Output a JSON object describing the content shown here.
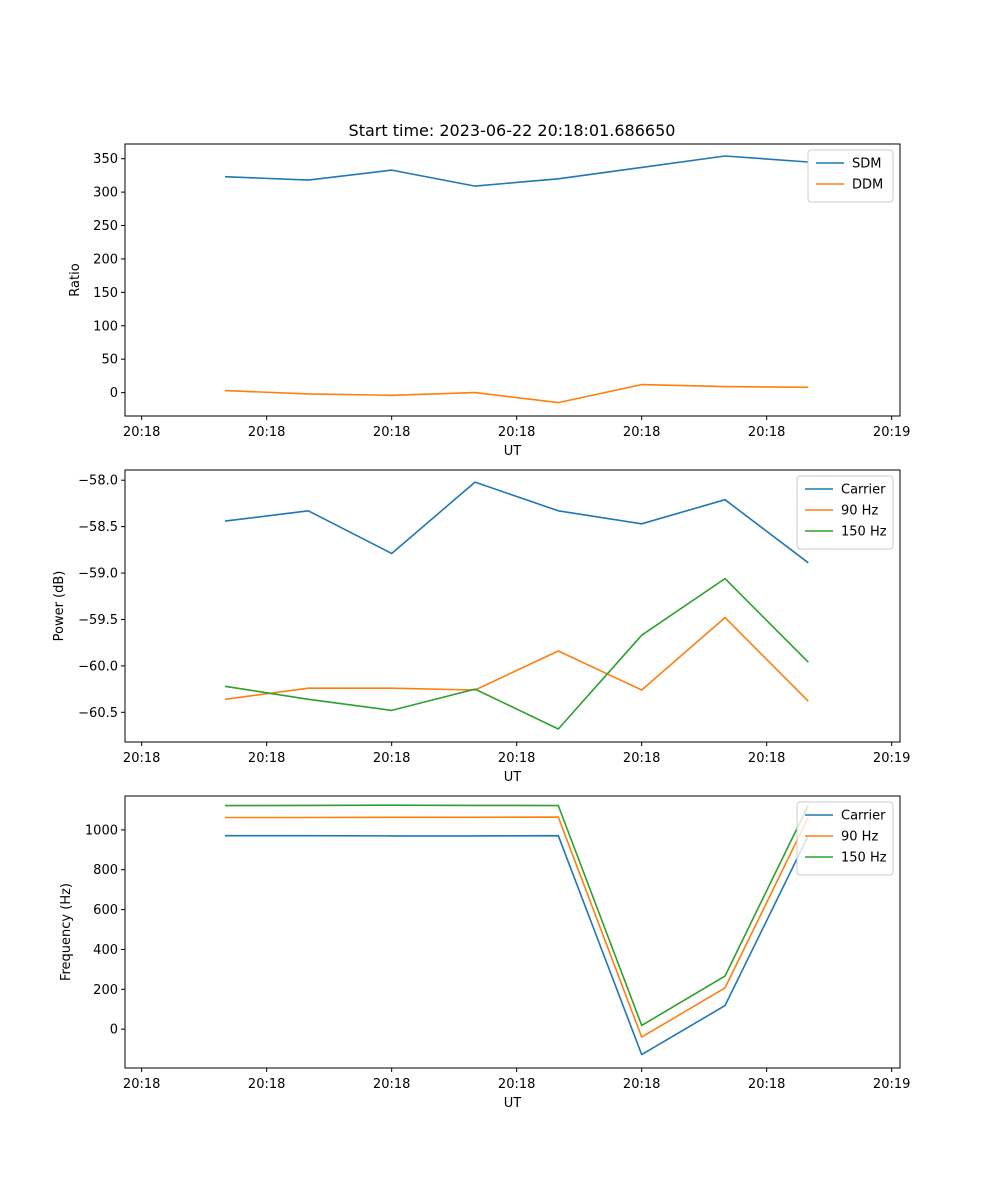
{
  "title": "Start time: 2023-06-22 20:18:01.686650",
  "colors": {
    "series1": "#1f77b4",
    "series2": "#ff7f0e",
    "series3": "#2ca02c",
    "axes": "#000000",
    "legend_border": "#cccccc"
  },
  "chart_data": [
    {
      "type": "line",
      "title": "Start time: 2023-06-22 20:18:01.686650",
      "xlabel": "UT",
      "ylabel": "Ratio",
      "x_ticks": [
        "20:18",
        "20:18",
        "20:18",
        "20:18",
        "20:18",
        "20:18",
        "20:18"
      ],
      "x_tick_last": "20:19",
      "x": [
        1,
        2,
        3,
        4,
        5,
        6,
        7,
        8
      ],
      "xlim": [
        -0.2,
        9.1
      ],
      "y_ticks": [
        0,
        50,
        100,
        150,
        200,
        250,
        300,
        350
      ],
      "ylim": [
        -35,
        372
      ],
      "legend": "top-right",
      "grid": false,
      "series": [
        {
          "name": "SDM",
          "color": "#1f77b4",
          "values": [
            323,
            318,
            333,
            309,
            320,
            337,
            354,
            345
          ]
        },
        {
          "name": "DDM",
          "color": "#ff7f0e",
          "values": [
            3,
            -2,
            -4,
            0,
            -15,
            12,
            9,
            8
          ]
        }
      ]
    },
    {
      "type": "line",
      "title": "",
      "xlabel": "UT",
      "ylabel": "Power (dB)",
      "x_ticks": [
        "20:18",
        "20:18",
        "20:18",
        "20:18",
        "20:18",
        "20:18",
        "20:18"
      ],
      "x_tick_last": "20:19",
      "x": [
        1,
        2,
        3,
        4,
        5,
        6,
        7,
        8
      ],
      "xlim": [
        -0.2,
        9.1
      ],
      "y_ticks": [
        -58.0,
        -58.5,
        -59.0,
        -59.5,
        -60.0,
        -60.5
      ],
      "y_tick_labels": [
        "−58.0",
        "−58.5",
        "−59.0",
        "−59.5",
        "−60.0",
        "−60.5"
      ],
      "ylim": [
        -60.82,
        -57.89
      ],
      "legend": "top-right",
      "grid": false,
      "series": [
        {
          "name": "Carrier",
          "color": "#1f77b4",
          "values": [
            -58.44,
            -58.33,
            -58.79,
            -58.02,
            -58.33,
            -58.47,
            -58.21,
            -58.89
          ]
        },
        {
          "name": "90 Hz",
          "color": "#ff7f0e",
          "values": [
            -60.36,
            -60.24,
            -60.24,
            -60.26,
            -59.84,
            -60.26,
            -59.48,
            -60.38
          ]
        },
        {
          "name": "150 Hz",
          "color": "#2ca02c",
          "values": [
            -60.22,
            -60.36,
            -60.48,
            -60.25,
            -60.68,
            -59.67,
            -59.06,
            -59.96
          ]
        }
      ]
    },
    {
      "type": "line",
      "title": "",
      "xlabel": "UT",
      "ylabel": "Frequency (Hz)",
      "x_ticks": [
        "20:18",
        "20:18",
        "20:18",
        "20:18",
        "20:18",
        "20:18",
        "20:18"
      ],
      "x_tick_last": "20:19",
      "x": [
        1,
        2,
        3,
        4,
        5,
        6,
        7,
        8
      ],
      "xlim": [
        -0.2,
        9.1
      ],
      "y_ticks": [
        0,
        200,
        400,
        600,
        800,
        1000
      ],
      "ylim": [
        -195,
        1170
      ],
      "legend": "top-right",
      "grid": false,
      "series": [
        {
          "name": "Carrier",
          "color": "#1f77b4",
          "values": [
            971,
            971,
            970,
            970,
            971,
            -128,
            118,
            971
          ]
        },
        {
          "name": "90 Hz",
          "color": "#ff7f0e",
          "values": [
            1062,
            1062,
            1063,
            1063,
            1064,
            -40,
            207,
            1063
          ]
        },
        {
          "name": "150 Hz",
          "color": "#2ca02c",
          "values": [
            1122,
            1123,
            1124,
            1123,
            1122,
            19,
            266,
            1123
          ]
        }
      ]
    }
  ]
}
